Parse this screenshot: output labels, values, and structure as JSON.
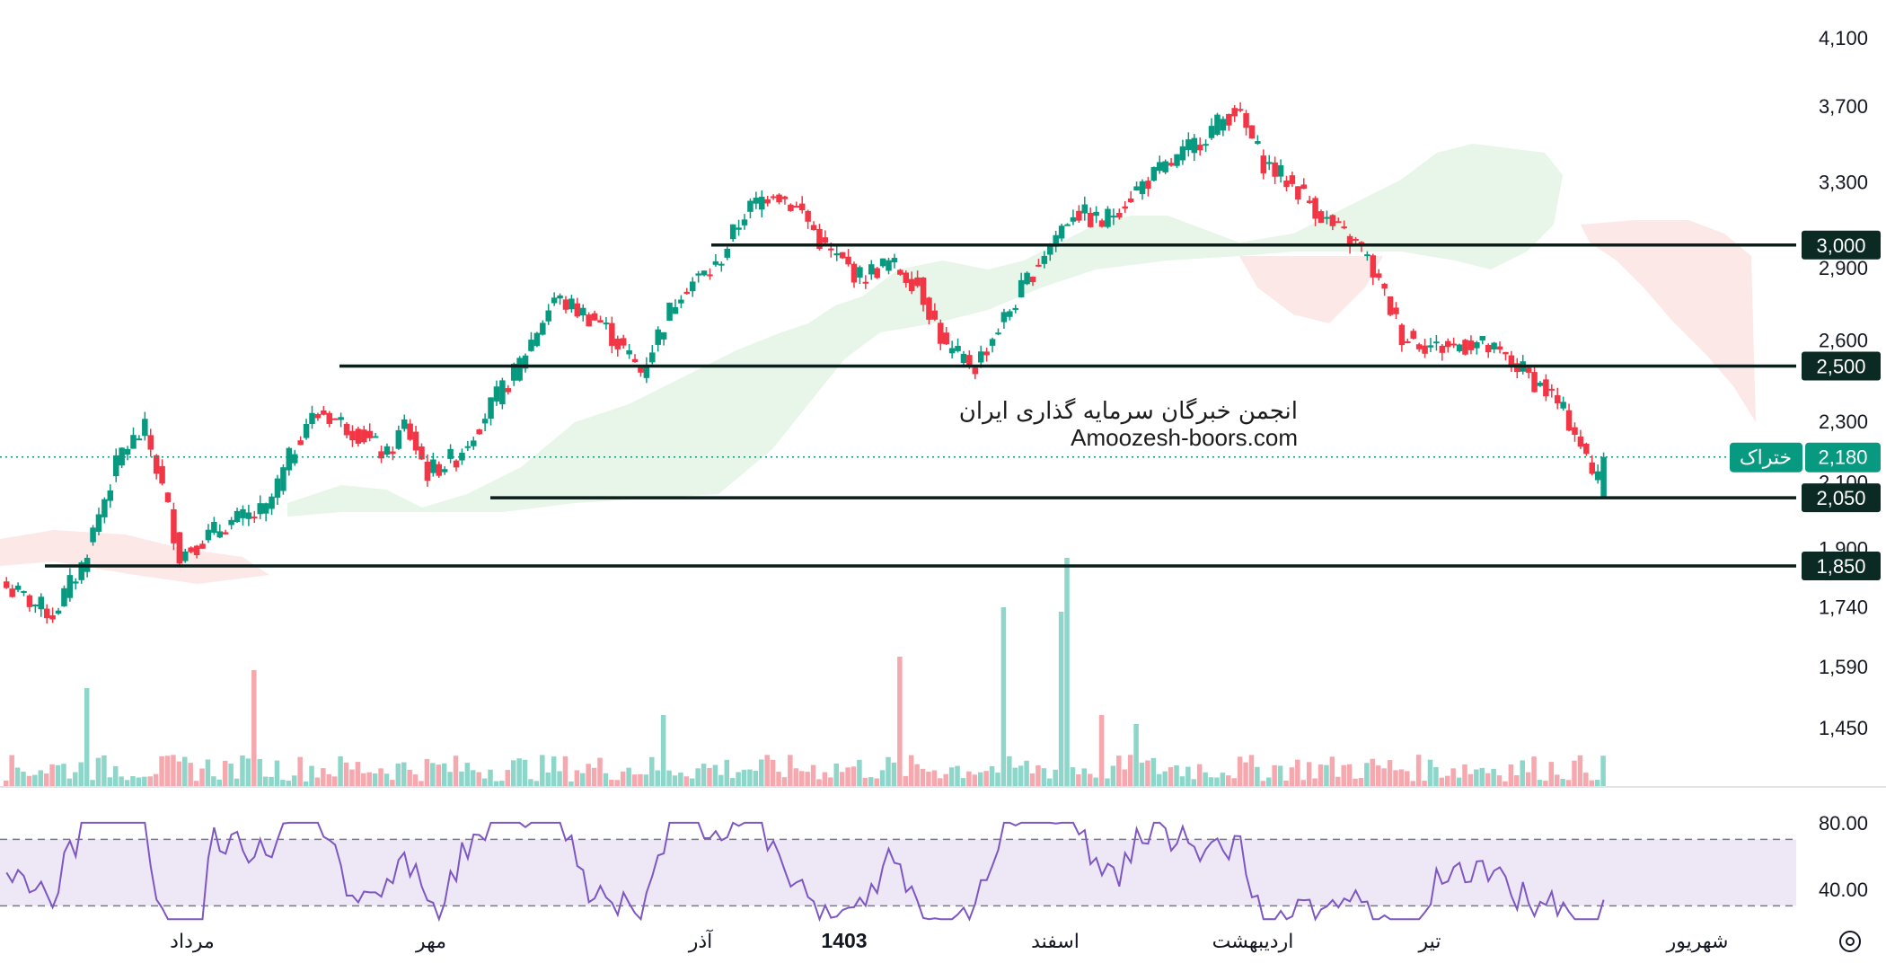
{
  "chart_data": {
    "type": "candlestick",
    "price_axis": {
      "ticks": [
        "4,100",
        "3,700",
        "3,300",
        "2,900",
        "2,600",
        "2,300",
        "2,100",
        "1,900",
        "1,740",
        "1,590",
        "1,450"
      ],
      "log_scale": true,
      "range": [
        1380,
        4200
      ]
    },
    "rsi_axis": {
      "ticks": [
        "80.00",
        "40.00"
      ],
      "upper_band": 70,
      "lower_band": 30
    },
    "time_axis": {
      "labels": [
        "مرداد",
        "مهر",
        "آذر",
        "1403",
        "اسفند",
        "اردیبهشت",
        "تیر",
        "شهریور"
      ],
      "bold_label": "1403"
    },
    "horizontal_levels": [
      {
        "value": 3000,
        "label": "3,000"
      },
      {
        "value": 2500,
        "label": "2,500"
      },
      {
        "value": 2050,
        "label": "2,050"
      },
      {
        "value": 1850,
        "label": "1,850"
      }
    ],
    "last_price": {
      "value": 2180,
      "label": "2,180",
      "symbol": "ختراک"
    },
    "watermark": {
      "line1": "انجمن خبرگان سرمایه گذاری ایران",
      "line2": "Amoozesh-boors.com"
    },
    "price_path": [
      [
        0,
        1790
      ],
      [
        8,
        1720
      ],
      [
        13,
        1850
      ],
      [
        20,
        2200
      ],
      [
        24,
        2270
      ],
      [
        27,
        2080
      ],
      [
        30,
        1880
      ],
      [
        38,
        1970
      ],
      [
        45,
        2010
      ],
      [
        48,
        2130
      ],
      [
        52,
        2300
      ],
      [
        55,
        2330
      ],
      [
        62,
        2250
      ],
      [
        66,
        2180
      ],
      [
        69,
        2290
      ],
      [
        73,
        2130
      ],
      [
        78,
        2180
      ],
      [
        88,
        2470
      ],
      [
        95,
        2770
      ],
      [
        103,
        2670
      ],
      [
        110,
        2480
      ],
      [
        117,
        2810
      ],
      [
        123,
        2900
      ],
      [
        128,
        3150
      ],
      [
        133,
        3260
      ],
      [
        138,
        3150
      ],
      [
        142,
        2980
      ],
      [
        148,
        2860
      ],
      [
        153,
        2920
      ],
      [
        158,
        2830
      ],
      [
        163,
        2560
      ],
      [
        168,
        2500
      ],
      [
        175,
        2760
      ],
      [
        180,
        2970
      ],
      [
        185,
        3160
      ],
      [
        190,
        3100
      ],
      [
        197,
        3290
      ],
      [
        203,
        3410
      ],
      [
        207,
        3520
      ],
      [
        213,
        3680
      ],
      [
        218,
        3400
      ],
      [
        224,
        3260
      ],
      [
        230,
        3080
      ],
      [
        235,
        2980
      ],
      [
        238,
        2830
      ],
      [
        242,
        2620
      ],
      [
        248,
        2570
      ],
      [
        255,
        2590
      ],
      [
        262,
        2500
      ],
      [
        268,
        2390
      ],
      [
        272,
        2270
      ],
      [
        275,
        2120
      ],
      [
        277,
        2180
      ]
    ],
    "colors": {
      "up": "#089981",
      "down": "#f23645",
      "cloud_bull": "#e8f5e9",
      "cloud_bear": "#fde8e8",
      "rsi_line": "#7e57c2",
      "rsi_band": "#ede7f6",
      "level_line": "#0b1f1a",
      "badge_bg": "#0b2a23",
      "last_price_bg": "#089981"
    }
  }
}
